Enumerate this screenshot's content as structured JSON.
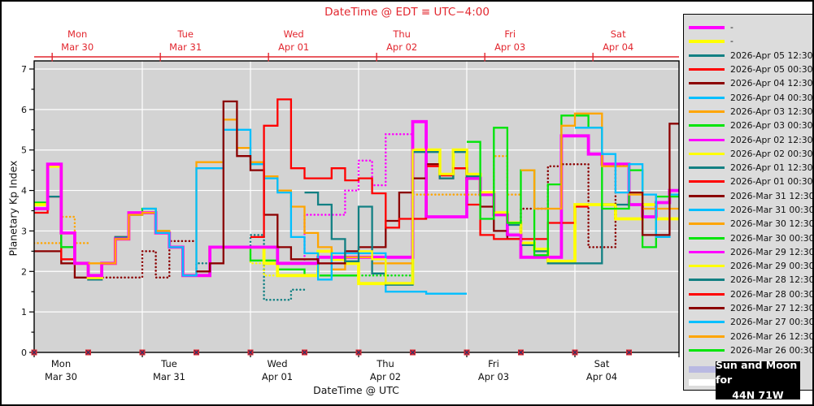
{
  "accent_red": "#e2262e",
  "plot_bg": "#d3d3d3",
  "legend_bg": "#dcdcdc",
  "sun_moon": {
    "line1": "Sun and Moon for",
    "line2": "44N 71W"
  },
  "legend": {
    "entries": [
      {
        "label": "-",
        "color": "#ff00ff",
        "thick": true
      },
      {
        "label": "-",
        "color": "#ffff00",
        "thick": true
      },
      {
        "label": "2026-Apr 05 12:30",
        "color": "#128083"
      },
      {
        "label": "2026-Apr 05 00:30",
        "color": "#ff0000"
      },
      {
        "label": "2026-Apr 04 12:30",
        "color": "#8b0000"
      },
      {
        "label": "2026-Apr 04 00:30",
        "color": "#00bfff"
      },
      {
        "label": "2026-Apr 03 12:30",
        "color": "#ffa500"
      },
      {
        "label": "2026-Apr 03 00:30",
        "color": "#00e408"
      },
      {
        "label": "2026-Apr 02 12:30",
        "color": "#ff00ff"
      },
      {
        "label": "2026-Apr 02 00:30",
        "color": "#ffff00"
      },
      {
        "label": "2026-Apr 01 12:30",
        "color": "#128083"
      },
      {
        "label": "2026-Apr 01 00:30",
        "color": "#ff0000"
      },
      {
        "label": "2026-Mar 31 12:30",
        "color": "#8b0000"
      },
      {
        "label": "2026-Mar 31 00:30",
        "color": "#00bfff"
      },
      {
        "label": "2026-Mar 30 12:30",
        "color": "#ffa500"
      },
      {
        "label": "2026-Mar 30 00:30",
        "color": "#00e408"
      },
      {
        "label": "2026-Mar 29 12:30",
        "color": "#ff00ff"
      },
      {
        "label": "2026-Mar 29 00:30",
        "color": "#ffff00"
      },
      {
        "label": "2026-Mar 28 12:30",
        "color": "#128083"
      },
      {
        "label": "2026-Mar 28 00:30",
        "color": "#ff0000"
      },
      {
        "label": "2026-Mar 27 12:30",
        "color": "#8b0000"
      },
      {
        "label": "2026-Mar 27 00:30",
        "color": "#00bfff"
      },
      {
        "label": "2026-Mar 26 12:30",
        "color": "#ffa500"
      },
      {
        "label": "2026-Mar 26 00:30",
        "color": "#00e408"
      }
    ],
    "day_swatch_color": "#b9b9e2",
    "night_swatch_color": "#ffffff"
  },
  "chart_data": {
    "type": "step-line",
    "title": "DateTime @ EDT ≡ UTC−4:00",
    "xlabel": "DateTime @ UTC",
    "ylabel": "Planetary Kp Index",
    "ylim": [
      0,
      7.2
    ],
    "yticks": [
      0,
      1,
      2,
      3,
      4,
      5,
      6,
      7
    ],
    "x_hours_range": [
      0,
      143.2
    ],
    "step_hours": 3,
    "days": [
      {
        "name": "Mon",
        "date": "Mar 30"
      },
      {
        "name": "Tue",
        "date": "Mar 31"
      },
      {
        "name": "Wed",
        "date": "Apr 01"
      },
      {
        "name": "Thu",
        "date": "Apr 02"
      },
      {
        "name": "Fri",
        "date": "Apr 03"
      },
      {
        "name": "Sat",
        "date": "Apr 04"
      }
    ],
    "edt_offset_hours": 4,
    "series": [
      {
        "name": "2026-Mar 26 12:30",
        "color": "#ffa500",
        "t0": 0,
        "dot_from": 0,
        "kp": [
          2.7,
          2.7,
          3.35,
          2.7
        ]
      },
      {
        "name": "2026-Mar 27 12:30",
        "color": "#8b0000",
        "t0": 0,
        "dot_from": 12,
        "kp": [
          2.5,
          2.5,
          2.2,
          1.85,
          1.85,
          1.85,
          1.85,
          1.85,
          2.5,
          1.85,
          2.75,
          2.75
        ]
      },
      {
        "name": "2026-Mar 28 00:30",
        "color": "#ff0000",
        "t0": 0,
        "dot_from": null,
        "kp": [
          3.45,
          3.85,
          2.3,
          2.2,
          1.8,
          2.2,
          2.85,
          3.4
        ]
      },
      {
        "name": "2026-Mar 28 12:30",
        "color": "#128083",
        "t0": 0,
        "dot_from": 36,
        "kp": [
          3.7,
          3.85,
          2.6,
          2.2,
          1.8,
          2.2,
          2.85,
          3.4,
          3.45,
          2.95,
          2.6,
          1.9,
          2.2,
          2.6,
          2.6,
          2.6,
          2.9,
          1.3,
          1.3,
          1.55
        ]
      },
      {
        "name": "2026-Mar 29 00:30",
        "color": "#ffff00",
        "t0": 0,
        "dot_from": 48,
        "kp": [
          3.65,
          4.6,
          2.95,
          2.2,
          1.85,
          2.2,
          2.8,
          3.45,
          3.45,
          2.95,
          2.6,
          1.9,
          1.9,
          2.6,
          2.6,
          2.6,
          2.2,
          1.9,
          1.9,
          1.9,
          1.9,
          1.9,
          1.9,
          1.9
        ]
      },
      {
        "name": "2026-Mar 29 12:30",
        "color": "#ff00ff",
        "t0": 0,
        "dot_from": 60,
        "kp": [
          3.55,
          4.65,
          2.95,
          2.2,
          1.9,
          2.2,
          2.8,
          3.45,
          3.45,
          2.95,
          2.6,
          1.9,
          1.9,
          2.6,
          2.6,
          2.6,
          2.6,
          2.6,
          2.2,
          2.2,
          3.4,
          3.4,
          3.4,
          4.0,
          4.74,
          4.13,
          5.39,
          5.39
        ]
      },
      {
        "name": "2026-Mar 30 00:30",
        "color": "#00e408",
        "t0": 0,
        "dot_from": 72,
        "kp": [
          3.7,
          4.6,
          2.6,
          2.2,
          1.9,
          2.2,
          2.8,
          3.4,
          3.55,
          3.0,
          2.6,
          1.9,
          1.9,
          2.6,
          2.6,
          2.6,
          2.27,
          2.27,
          2.05,
          2.05,
          1.9,
          1.9,
          1.9,
          1.9,
          1.9,
          1.9,
          1.9,
          1.9
        ]
      },
      {
        "name": "-",
        "color": "#ffff00",
        "lw": 3.8,
        "t0": 0,
        "dot_from": null,
        "kp": [
          3.65,
          4.6,
          2.95,
          2.2,
          1.85,
          2.2,
          2.8,
          3.45,
          3.45,
          2.95,
          2.6,
          1.9,
          1.9,
          2.6,
          2.6,
          2.6,
          2.6,
          2.2,
          1.9,
          1.9,
          1.9,
          2.5,
          2.3,
          2.2,
          1.7,
          1.7,
          1.7,
          1.7,
          5.0,
          5.0,
          4.4,
          5.0,
          4.4,
          3.95,
          3.45,
          3.2,
          2.7,
          2.55,
          2.25,
          2.25,
          3.65,
          3.65,
          3.65,
          3.3,
          3.3,
          3.65,
          3.3,
          3.3
        ]
      },
      {
        "name": "-",
        "color": "#ff00ff",
        "lw": 3.8,
        "t0": 0,
        "dot_from": null,
        "kp": [
          3.55,
          4.65,
          2.95,
          2.2,
          1.9,
          2.2,
          2.8,
          3.45,
          3.45,
          2.95,
          2.6,
          1.9,
          1.9,
          2.6,
          2.6,
          2.6,
          2.6,
          2.6,
          2.2,
          2.2,
          2.2,
          2.35,
          2.35,
          2.35,
          2.35,
          2.35,
          2.35,
          2.35,
          5.7,
          3.35,
          3.35,
          3.35,
          4.3,
          3.9,
          3.4,
          2.9,
          2.35,
          2.35,
          2.35,
          5.35,
          5.35,
          4.9,
          4.65,
          4.65,
          3.65,
          3.35,
          3.7,
          4.0
        ]
      },
      {
        "name": "2026-Mar 30 12:30",
        "color": "#ffa500",
        "t0": 12,
        "dot_from": 84,
        "kp": [
          2.2,
          2.2,
          2.8,
          3.4,
          3.45,
          3.0,
          2.6,
          1.9,
          4.7,
          4.7,
          5.75,
          5.05,
          4.7,
          4.35,
          4.0,
          3.6,
          2.95,
          2.6,
          2.05,
          2.35,
          2.35,
          2.2,
          2.2,
          2.2,
          3.9,
          3.9,
          3.9,
          3.9,
          3.9,
          3.9,
          4.85,
          3.9
        ]
      },
      {
        "name": "2026-Mar 31 00:30",
        "color": "#00bfff",
        "t0": 24,
        "dot_from": null,
        "kp": [
          3.55,
          2.95,
          2.6,
          1.9,
          4.55,
          4.55,
          5.5,
          5.5,
          4.65,
          4.3,
          3.95,
          2.85,
          2.45,
          1.8,
          2.45,
          2.45,
          2.45,
          2.45,
          1.5,
          1.5,
          1.5,
          1.45,
          1.45,
          1.45
        ]
      },
      {
        "name": "2026-Mar 31 12:30",
        "color": "#8b0000",
        "t0": 36,
        "dot_from": 108,
        "kp": [
          2.0,
          2.2,
          6.2,
          4.85,
          4.5,
          3.4,
          2.6,
          2.3,
          2.3,
          2.2,
          2.2,
          2.5,
          2.6,
          2.6,
          3.25,
          3.95,
          4.3,
          4.65,
          4.3,
          4.55,
          4.3,
          3.6,
          3.0,
          2.8,
          3.55,
          3.55,
          4.6,
          4.65,
          4.65,
          2.6,
          2.6,
          4.65
        ]
      },
      {
        "name": "2026-Apr 01 00:30",
        "color": "#ff0000",
        "t0": 48,
        "dot_from": null,
        "kp": [
          2.85,
          5.6,
          6.25,
          4.55,
          4.3,
          4.3,
          4.55,
          4.25,
          4.3,
          3.93,
          3.08,
          3.3,
          3.3,
          4.6,
          4.37,
          4.55,
          3.65,
          2.9,
          2.8,
          2.8,
          2.8,
          2.8,
          3.2,
          3.2,
          3.6
        ]
      },
      {
        "name": "2026-Apr 01 12:30",
        "color": "#128083",
        "t0": 60,
        "dot_from": null,
        "kp": [
          3.95,
          3.65,
          2.8,
          2.25,
          3.6,
          1.95,
          1.67,
          1.67,
          4.95,
          4.95,
          4.3,
          4.95,
          4.35,
          3.9,
          3.4,
          3.15,
          2.65,
          2.5,
          2.2,
          2.2,
          2.2,
          2.2,
          3.65,
          3.65
        ]
      },
      {
        "name": "2026-Apr 02 00:30",
        "color": "#ffff00",
        "t0": 72,
        "dot_from": null,
        "kp": [
          2.5,
          2.3,
          1.7,
          1.7,
          5.0,
          5.0,
          4.4,
          5.0,
          4.4,
          3.95,
          3.45,
          3.2,
          2.7,
          2.55,
          2.25,
          2.25,
          3.65,
          3.65,
          3.65,
          3.3,
          3.3,
          3.65,
          3.3,
          3.3
        ]
      },
      {
        "name": "2026-Apr 02 12:30",
        "color": "#ff00ff",
        "t0": 84,
        "dot_from": null,
        "kp": [
          5.7,
          3.35,
          3.35,
          3.35,
          4.3,
          3.9,
          3.4,
          2.9,
          2.35,
          2.35,
          2.35,
          5.35,
          5.35,
          4.9,
          4.65,
          4.65,
          3.65,
          3.35,
          3.7,
          4.0
        ]
      },
      {
        "name": "2026-Apr 03 00:30",
        "color": "#00e408",
        "t0": 96,
        "dot_from": null,
        "kp": [
          5.2,
          3.3,
          5.55,
          3.2,
          4.5,
          2.4,
          4.15,
          5.85,
          5.85,
          5.55,
          3.55,
          3.55,
          4.5,
          2.6,
          3.85,
          3.85
        ]
      },
      {
        "name": "2026-Apr 03 12:30",
        "color": "#ffa500",
        "t0": 108,
        "dot_from": null,
        "kp": [
          4.5,
          3.55,
          3.55,
          5.6,
          5.9,
          5.9,
          4.6,
          4.6,
          3.9,
          3.55,
          3.55,
          3.55
        ]
      },
      {
        "name": "2026-Apr 04 00:30",
        "color": "#00bfff",
        "t0": 120,
        "dot_from": null,
        "kp": [
          5.55,
          5.55,
          4.9,
          3.95,
          4.65,
          3.9,
          2.85,
          3.9
        ]
      },
      {
        "name": "2026-Apr 04 12:30",
        "color": "#8b0000",
        "t0": 132,
        "dot_from": null,
        "kp": [
          3.95,
          2.9,
          2.9,
          5.65
        ]
      }
    ]
  }
}
